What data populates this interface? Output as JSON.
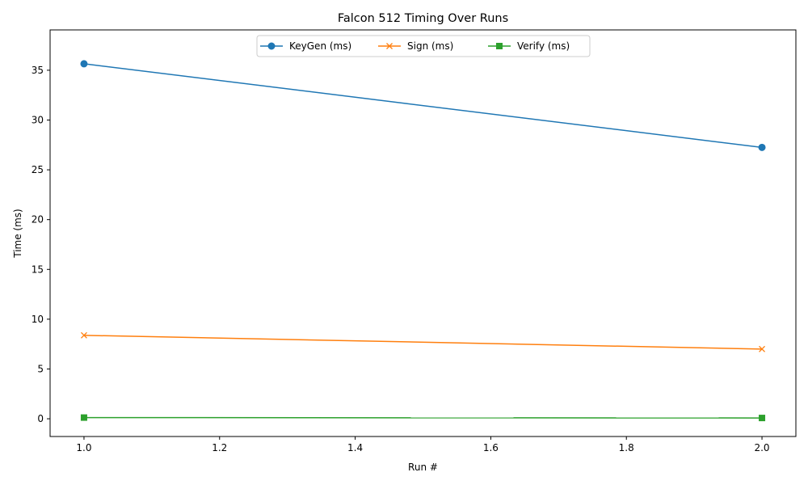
{
  "chart_data": {
    "type": "line",
    "title": "Falcon 512 Timing Over Runs",
    "xlabel": "Run #",
    "ylabel": "Time (ms)",
    "xlim": [
      0.95,
      2.05
    ],
    "ylim": [
      -1.78,
      39.05
    ],
    "x_ticks": [
      1.0,
      1.2,
      1.4,
      1.6,
      1.8,
      2.0
    ],
    "x_tick_labels": [
      "1.0",
      "1.2",
      "1.4",
      "1.6",
      "1.8",
      "2.0"
    ],
    "y_ticks": [
      0,
      5,
      10,
      15,
      20,
      25,
      30,
      35
    ],
    "y_tick_labels": [
      "0",
      "5",
      "10",
      "15",
      "20",
      "25",
      "30",
      "35"
    ],
    "grid": false,
    "legend_position": "top-center",
    "x": [
      1,
      2
    ],
    "series": [
      {
        "name": "KeyGen (ms)",
        "values": [
          35.65,
          27.25
        ],
        "color": "#1f77b4",
        "marker": "circle"
      },
      {
        "name": "Sign (ms)",
        "values": [
          8.38,
          7.0
        ],
        "color": "#ff7f0e",
        "marker": "x"
      },
      {
        "name": "Verify (ms)",
        "values": [
          0.12,
          0.08
        ],
        "color": "#2ca02c",
        "marker": "square"
      }
    ]
  }
}
